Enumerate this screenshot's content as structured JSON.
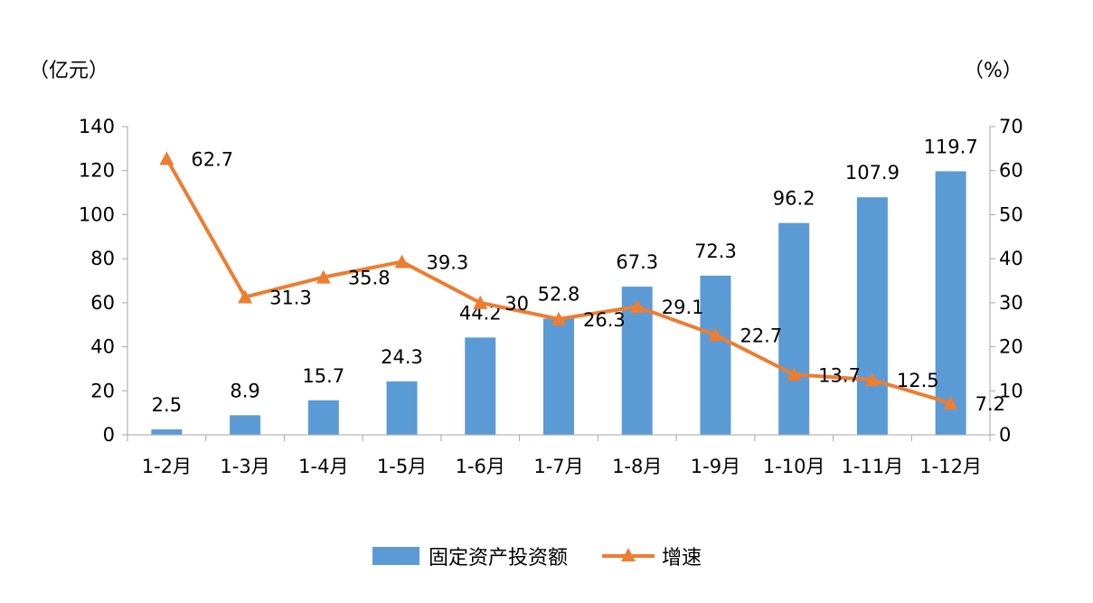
{
  "chart_data": {
    "type": "bar",
    "categories": [
      "1-2月",
      "1-3月",
      "1-4月",
      "1-5月",
      "1-6月",
      "1-7月",
      "1-8月",
      "1-9月",
      "1-10月",
      "1-11月",
      "1-12月"
    ],
    "series": [
      {
        "name": "固定资产投资额",
        "type": "bar",
        "axis": "left",
        "color": "#5B9BD5",
        "values": [
          2.5,
          8.9,
          15.7,
          24.3,
          44.2,
          52.8,
          67.3,
          72.3,
          96.2,
          107.9,
          119.7
        ],
        "labels": [
          "2.5",
          "8.9",
          "15.7",
          "24.3",
          "44.2",
          "52.8",
          "67.3",
          "72.3",
          "96.2",
          "107.9",
          "119.7"
        ]
      },
      {
        "name": "增速",
        "type": "line",
        "axis": "right",
        "marker": "triangle",
        "color": "#ED7D31",
        "values": [
          62.7,
          31.3,
          35.8,
          39.3,
          30,
          26.3,
          29.1,
          22.7,
          13.7,
          12.5,
          7.2
        ],
        "labels": [
          "62.7",
          "31.3",
          "35.8",
          "39.3",
          "30",
          "26.3",
          "29.1",
          "22.7",
          "13.7",
          "12.5",
          "7.2"
        ]
      }
    ],
    "y_left": {
      "unit_label": "（亿元）",
      "ylim": [
        0,
        140
      ],
      "ticks": [
        "0",
        "20",
        "40",
        "60",
        "80",
        "100",
        "120",
        "140"
      ]
    },
    "y_right": {
      "unit_label": "（%）",
      "ylim": [
        0,
        70
      ],
      "ticks": [
        "0",
        "10",
        "20",
        "30",
        "40",
        "50",
        "60",
        "70"
      ]
    },
    "grid": false,
    "legend": {
      "position": "bottom"
    }
  }
}
